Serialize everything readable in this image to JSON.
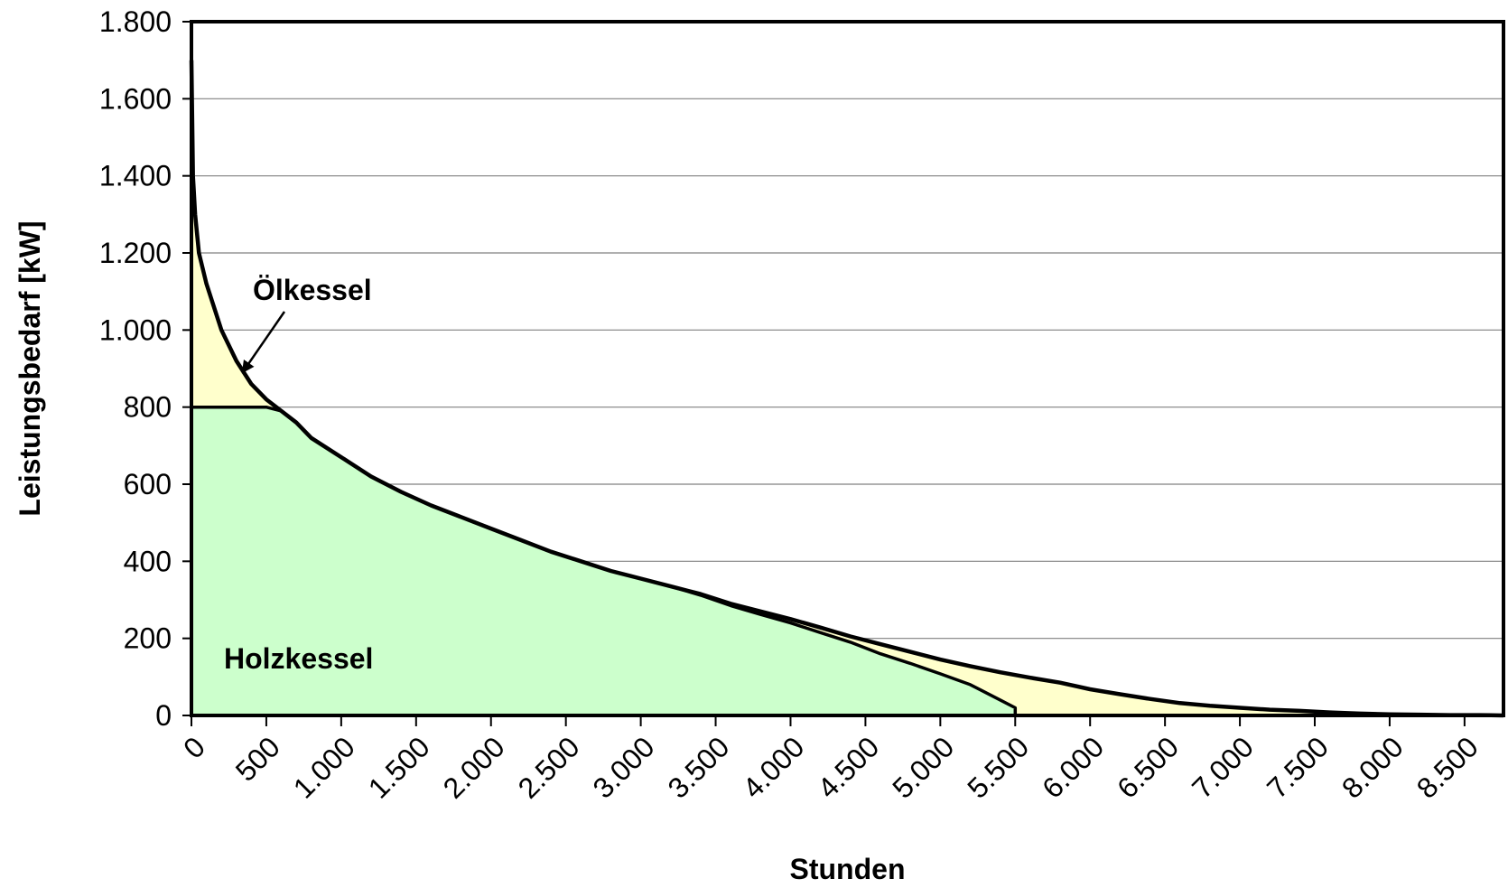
{
  "chart_data": {
    "type": "area",
    "title": "",
    "xlabel": "Stunden",
    "ylabel": "Leistungsbedarf  [kW]",
    "xlim": [
      0,
      8760
    ],
    "ylim": [
      0,
      1800
    ],
    "x_ticks": [
      0,
      500,
      1000,
      1500,
      2000,
      2500,
      3000,
      3500,
      4000,
      4500,
      5000,
      5500,
      6000,
      6500,
      7000,
      7500,
      8000,
      8500
    ],
    "x_tick_labels": [
      "0",
      "500",
      "1.000",
      "1.500",
      "2.000",
      "2.500",
      "3.000",
      "3.500",
      "4.000",
      "4.500",
      "5.000",
      "5.500",
      "6.000",
      "6.500",
      "7.000",
      "7.500",
      "8.000",
      "8.500"
    ],
    "y_ticks": [
      0,
      200,
      400,
      600,
      800,
      1000,
      1200,
      1400,
      1600,
      1800
    ],
    "y_tick_labels": [
      "0",
      "200",
      "400",
      "600",
      "800",
      "1.000",
      "1.200",
      "1.400",
      "1.600",
      "1.800"
    ],
    "grid": "horizontal",
    "colors": {
      "oil_fill": "#ffffcc",
      "wood_fill": "#ccffcc",
      "line": "#000000",
      "grid": "#808080"
    },
    "series": [
      {
        "name": "Ölkessel",
        "x": [
          0,
          10,
          25,
          50,
          100,
          150,
          200,
          300,
          400,
          500,
          600,
          700,
          800,
          1000,
          1200,
          1400,
          1600,
          1800,
          2000,
          2200,
          2400,
          2600,
          2800,
          3000,
          3200,
          3400,
          3600,
          3800,
          4000,
          4200,
          4400,
          4600,
          4800,
          5000,
          5200,
          5400,
          5600,
          5800,
          6000,
          6200,
          6400,
          6600,
          6800,
          7000,
          7200,
          7400,
          7600,
          7800,
          8000,
          8200,
          8400,
          8600,
          8760
        ],
        "values": [
          1700,
          1400,
          1300,
          1200,
          1120,
          1060,
          1000,
          920,
          860,
          820,
          790,
          760,
          720,
          670,
          620,
          580,
          545,
          515,
          485,
          455,
          425,
          400,
          375,
          355,
          335,
          315,
          290,
          270,
          250,
          228,
          205,
          185,
          165,
          145,
          128,
          112,
          98,
          85,
          68,
          55,
          43,
          32,
          25,
          20,
          15,
          12,
          8,
          5,
          3,
          2,
          1,
          1,
          0
        ]
      },
      {
        "name": "Holzkessel",
        "x": [
          0,
          500,
          600,
          700,
          800,
          1000,
          1200,
          1400,
          1600,
          1800,
          2000,
          2200,
          2400,
          2600,
          2800,
          3000,
          3200,
          3400,
          3600,
          3800,
          4000,
          4200,
          4400,
          4600,
          4800,
          5000,
          5200,
          5400,
          5500,
          5500
        ],
        "values": [
          800,
          800,
          790,
          760,
          720,
          670,
          620,
          580,
          545,
          515,
          485,
          455,
          425,
          400,
          375,
          355,
          335,
          312,
          285,
          262,
          240,
          215,
          190,
          160,
          135,
          108,
          80,
          40,
          20,
          0
        ]
      }
    ],
    "annotations": [
      {
        "text": "Ölkessel",
        "arrow_to": [
          350,
          895
        ]
      },
      {
        "text": "Holzkessel"
      }
    ]
  }
}
